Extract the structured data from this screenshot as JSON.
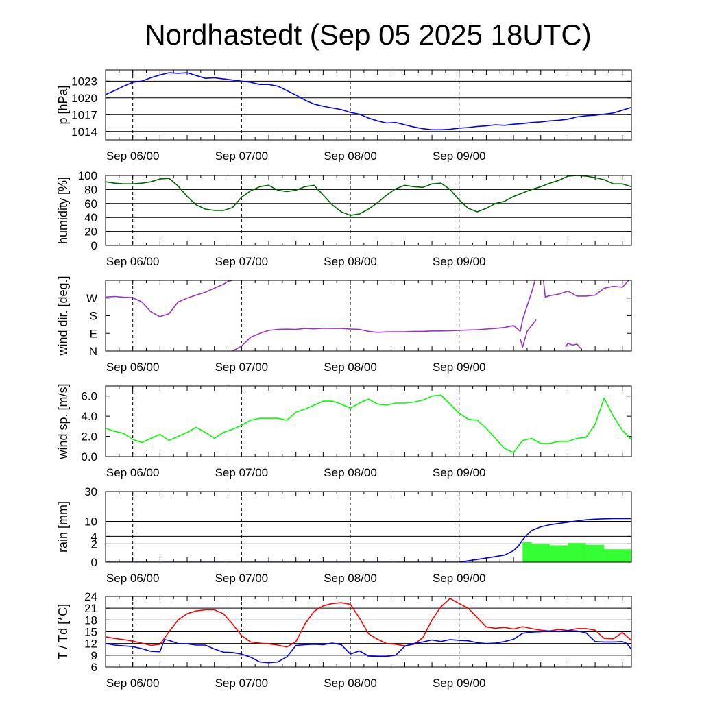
{
  "title": "Nordhastedt (Sep 05 2025 18UTC)",
  "x_tick_labels": [
    "Sep 06/00",
    "Sep 07/00",
    "Sep 08/00",
    "Sep 09/00"
  ],
  "chart_data": [
    {
      "type": "line",
      "ylabel": "p [hPa]",
      "x_unit": "hours since Sep 05 18UTC",
      "ylim": [
        1012.5,
        1025
      ],
      "yticks": [
        1014,
        1017,
        1020,
        1023
      ],
      "hgrid": [
        1014,
        1017,
        1020,
        1023
      ],
      "series": [
        {
          "color": "#0000ff",
          "x": [
            0,
            2,
            4,
            6,
            8,
            10,
            12,
            14,
            16,
            18,
            20,
            22,
            24,
            26,
            28,
            30,
            32,
            34,
            36,
            38,
            40,
            42,
            44,
            46,
            48,
            50,
            52,
            54,
            56,
            58,
            60,
            62,
            64,
            66,
            68,
            70,
            72,
            74,
            76,
            78,
            80,
            82,
            84,
            86,
            88,
            90,
            92,
            94,
            96,
            98,
            100,
            102,
            104,
            106,
            108,
            110,
            112,
            114,
            116
          ],
          "y": [
            1020.6,
            1021.3,
            1022.1,
            1022.8,
            1023.0,
            1023.6,
            1024.1,
            1024.5,
            1024.4,
            1024.5,
            1024.0,
            1023.5,
            1023.6,
            1023.4,
            1023.2,
            1023.0,
            1022.8,
            1022.4,
            1022.4,
            1022.1,
            1021.3,
            1020.5,
            1019.6,
            1018.9,
            1018.5,
            1018.2,
            1017.9,
            1017.4,
            1017.1,
            1016.4,
            1015.9,
            1015.5,
            1015.6,
            1015.2,
            1014.8,
            1014.5,
            1014.3,
            1014.3,
            1014.4,
            1014.6,
            1014.7,
            1014.9,
            1015.0,
            1015.2,
            1015.1,
            1015.3,
            1015.4,
            1015.6,
            1015.7,
            1015.9,
            1016.0,
            1016.2,
            1016.6,
            1016.8,
            1016.9,
            1017.1,
            1017.3,
            1017.8,
            1018.3
          ]
        }
      ]
    },
    {
      "type": "line",
      "ylabel": "humidity [%]",
      "x_unit": "hours since Sep 05 18UTC",
      "ylim": [
        0,
        100
      ],
      "yticks": [
        0,
        20,
        40,
        60,
        80,
        100
      ],
      "hgrid": [
        20,
        40,
        60,
        80,
        100
      ],
      "series": [
        {
          "color": "#006400",
          "x": [
            0,
            2,
            4,
            6,
            8,
            10,
            12,
            14,
            16,
            18,
            20,
            22,
            24,
            26,
            28,
            30,
            32,
            34,
            36,
            38,
            40,
            42,
            44,
            46,
            48,
            50,
            52,
            54,
            56,
            58,
            60,
            62,
            64,
            66,
            68,
            70,
            72,
            74,
            76,
            78,
            80,
            82,
            84,
            86,
            88,
            90,
            92,
            94,
            96,
            98,
            100,
            102,
            104,
            106,
            108,
            110,
            112,
            114,
            116
          ],
          "y": [
            91,
            89,
            88,
            88,
            89,
            91,
            95,
            96,
            85,
            70,
            58,
            52,
            50,
            50,
            54,
            69,
            78,
            84,
            86,
            79,
            77,
            79,
            84,
            86,
            72,
            58,
            48,
            43,
            45,
            52,
            61,
            72,
            81,
            86,
            84,
            83,
            88,
            89,
            80,
            65,
            53,
            48,
            53,
            60,
            63,
            70,
            75,
            80,
            84,
            89,
            93,
            99,
            100,
            99,
            97,
            94,
            88,
            88,
            84
          ]
        }
      ]
    },
    {
      "type": "scatter",
      "ylabel": "wind dir. [deg.]",
      "x_unit": "hours since Sep 05 18UTC",
      "ylim": [
        0,
        360
      ],
      "yticks": [
        {
          "value": 0,
          "label": "N"
        },
        {
          "value": 90,
          "label": "E"
        },
        {
          "value": 180,
          "label": "S"
        },
        {
          "value": 270,
          "label": "W"
        }
      ],
      "series": [
        {
          "color": "#9932cc",
          "x": [
            0,
            2,
            4,
            6,
            8,
            10,
            12,
            14,
            16,
            18,
            20,
            22,
            24,
            26,
            27,
            28
          ],
          "y": [
            275,
            278,
            274,
            272,
            250,
            200,
            175,
            190,
            250,
            270,
            285,
            300,
            320,
            340,
            355,
            360
          ]
        },
        {
          "color": "#9932cc",
          "x": [
            28,
            30,
            32,
            34,
            36,
            38,
            40,
            42,
            44,
            46,
            48,
            50,
            52,
            54,
            56,
            58,
            60,
            62,
            64,
            66,
            68,
            70,
            72,
            74,
            76,
            78,
            80,
            82,
            84,
            86,
            88,
            90,
            91.5
          ],
          "y": [
            0,
            25,
            70,
            90,
            105,
            110,
            111,
            110,
            115,
            113,
            116,
            115,
            115,
            112,
            110,
            100,
            95,
            97,
            98,
            98,
            100,
            100,
            102,
            102,
            103,
            105,
            107,
            108,
            112,
            115,
            120,
            130,
            100
          ]
        },
        {
          "color": "#9932cc",
          "x": [
            91.5,
            92,
            93,
            94,
            95,
            96,
            96.5,
            97,
            98,
            100,
            102,
            104,
            106,
            108,
            110,
            112,
            114,
            116
          ],
          "y": [
            100,
            160,
            230,
            300,
            380,
            380,
            380,
            275,
            282,
            290,
            305,
            280,
            280,
            285,
            320,
            330,
            325,
            375
          ]
        },
        {
          "color": "#9932cc",
          "x": [
            91.5,
            92,
            93,
            94,
            95
          ],
          "y": [
            60,
            20,
            100,
            130,
            160
          ]
        },
        {
          "color": "#9932cc",
          "x": [
            101.5,
            102,
            103,
            104,
            104.5,
            105
          ],
          "y": [
            20,
            40,
            30,
            35,
            20,
            10
          ]
        }
      ]
    },
    {
      "type": "line",
      "ylabel": "wind sp. [m/s]",
      "x_unit": "hours since Sep 05 18UTC",
      "ylim": [
        0,
        7
      ],
      "yticks": [
        0.0,
        2.0,
        4.0,
        6.0
      ],
      "yticklabels": [
        "0.0",
        "2.0",
        "4.0",
        "6.0"
      ],
      "series": [
        {
          "color": "#00ff00",
          "x": [
            0,
            2,
            4,
            6,
            8,
            10,
            12,
            14,
            16,
            18,
            20,
            22,
            24,
            26,
            28,
            30,
            32,
            34,
            36,
            38,
            40,
            42,
            44,
            46,
            48,
            50,
            52,
            54,
            56,
            58,
            60,
            62,
            64,
            66,
            68,
            70,
            72,
            74,
            76,
            78,
            80,
            82,
            84,
            86,
            88,
            90,
            92,
            94,
            96,
            98,
            100,
            102,
            104,
            106,
            108,
            110,
            112,
            114,
            116
          ],
          "y": [
            2.8,
            2.5,
            2.3,
            1.7,
            1.4,
            1.8,
            2.2,
            1.6,
            2.0,
            2.4,
            2.9,
            2.4,
            1.8,
            2.4,
            2.7,
            3.1,
            3.6,
            3.8,
            3.8,
            3.8,
            3.6,
            4.4,
            4.7,
            5.1,
            5.5,
            5.5,
            5.2,
            4.8,
            5.3,
            5.7,
            5.2,
            5.1,
            5.3,
            5.3,
            5.4,
            5.6,
            6.0,
            6.1,
            5.2,
            4.3,
            3.7,
            3.6,
            2.8,
            1.8,
            0.8,
            0.4,
            1.6,
            1.8,
            1.3,
            1.3,
            1.5,
            1.5,
            1.8,
            1.9,
            3.2,
            5.8,
            4.0,
            2.6,
            1.7
          ]
        }
      ]
    },
    {
      "type": "area",
      "ylabel": "rain [mm]",
      "x_unit": "hours since Sep 05 18UTC",
      "y_scale": "sqrt",
      "ylim": [
        0,
        30
      ],
      "yticks": [
        0,
        2,
        4,
        10,
        30
      ],
      "hgrid": [
        2,
        4,
        10,
        30
      ],
      "series": [
        {
          "name": "",
          "kind": "bars",
          "color": "#33ff33",
          "x_bins": [
            [
              92,
              94
            ],
            [
              94,
              98
            ],
            [
              98,
              102
            ],
            [
              102,
              106
            ],
            [
              106,
              110
            ],
            [
              110,
              116
            ]
          ],
          "values": [
            2.4,
            2.0,
            1.7,
            2.2,
            1.8,
            1.0
          ]
        },
        {
          "name": "",
          "kind": "line",
          "color": "#0000ff",
          "x": [
            0,
            70,
            78,
            84,
            88,
            90,
            91,
            92,
            93,
            94,
            96,
            98,
            100,
            102,
            104,
            106,
            108,
            110,
            112,
            116
          ],
          "y": [
            0,
            0,
            0,
            0.1,
            0.3,
            0.8,
            1.5,
            3.0,
            4.5,
            6.0,
            7.5,
            8.4,
            9.0,
            9.6,
            10.2,
            10.8,
            11.1,
            11.3,
            11.4,
            11.4
          ]
        }
      ]
    },
    {
      "type": "line",
      "ylabel": "T / Td [*C]",
      "x_unit": "hours since Sep 05 18UTC",
      "ylim": [
        6,
        24
      ],
      "yticks": [
        6,
        9,
        12,
        15,
        18,
        21,
        24
      ],
      "hgrid": [
        9,
        12,
        15,
        18,
        21,
        24
      ],
      "series": [
        {
          "color": "#ff0000",
          "x": [
            0,
            2,
            4,
            6,
            8,
            10,
            12,
            14,
            16,
            18,
            20,
            22,
            24,
            26,
            28,
            30,
            32,
            34,
            36,
            38,
            40,
            42,
            44,
            46,
            48,
            50,
            52,
            54,
            56,
            58,
            60,
            62,
            64,
            66,
            68,
            70,
            72,
            74,
            76,
            78,
            80,
            82,
            84,
            86,
            88,
            90,
            92,
            94,
            96,
            98,
            100,
            102,
            104,
            106,
            108,
            110,
            112,
            114,
            116
          ],
          "y": [
            13.7,
            13.3,
            13.0,
            12.6,
            12.1,
            11.5,
            11.8,
            15.0,
            18.0,
            19.6,
            20.3,
            20.6,
            20.6,
            19.6,
            17.0,
            14.0,
            12.4,
            12.1,
            11.9,
            11.6,
            11.1,
            12.5,
            17.0,
            20.2,
            21.6,
            22.2,
            22.4,
            22.0,
            18.5,
            14.5,
            13.1,
            12.0,
            11.8,
            11.4,
            11.8,
            13.5,
            18.0,
            21.4,
            23.5,
            22.2,
            21.0,
            18.6,
            16.2,
            15.9,
            16.1,
            15.7,
            16.3,
            15.8,
            15.4,
            15.2,
            15.6,
            15.3,
            15.8,
            15.8,
            15.4,
            13.3,
            13.2,
            14.8,
            12.8
          ]
        },
        {
          "color": "#0000ff",
          "x": [
            0,
            2,
            4,
            6,
            8,
            10,
            12,
            13,
            14,
            16,
            18,
            20,
            22,
            24,
            26,
            28,
            30,
            32,
            34,
            36,
            38,
            40,
            42,
            44,
            46,
            48,
            50,
            52,
            54,
            56,
            58,
            60,
            62,
            64,
            66,
            68,
            70,
            72,
            74,
            76,
            78,
            80,
            82,
            84,
            86,
            88,
            90,
            92,
            94,
            96,
            98,
            100,
            102,
            104,
            106,
            108,
            110,
            112,
            114,
            115,
            116
          ],
          "y": [
            12.0,
            11.6,
            11.4,
            11.2,
            10.7,
            10.0,
            9.9,
            13.0,
            12.8,
            12.0,
            11.9,
            11.6,
            11.6,
            10.6,
            9.8,
            9.7,
            9.3,
            8.5,
            7.3,
            7.1,
            7.3,
            8.6,
            11.5,
            11.7,
            11.8,
            11.7,
            12.1,
            11.7,
            9.3,
            10.1,
            8.8,
            8.7,
            8.7,
            9.0,
            11.3,
            12.0,
            12.4,
            12.9,
            12.5,
            13.0,
            12.8,
            12.7,
            12.2,
            12.0,
            12.1,
            12.5,
            13.1,
            14.6,
            14.9,
            15.0,
            15.2,
            15.0,
            15.3,
            15.2,
            14.7,
            12.5,
            12.4,
            12.4,
            12.5,
            12.0,
            10.5
          ]
        }
      ]
    }
  ]
}
